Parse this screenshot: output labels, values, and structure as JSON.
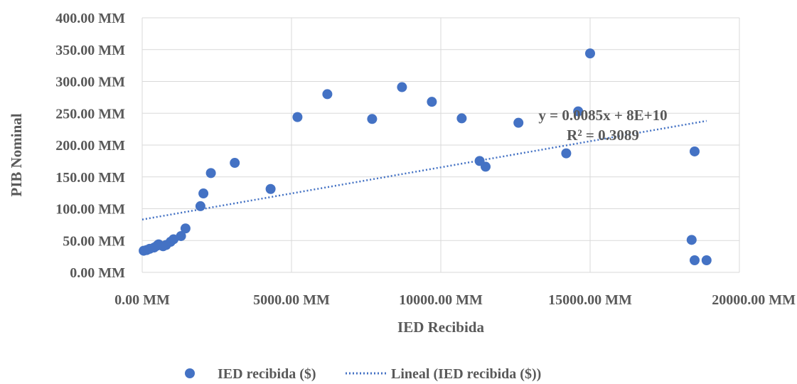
{
  "chart_data": {
    "type": "scatter",
    "xlabel": "IED Recibida",
    "ylabel": "PIB Nominal",
    "xlim": [
      0,
      20000
    ],
    "ylim": [
      0,
      400
    ],
    "x_ticks": [
      0,
      5000,
      10000,
      15000,
      20000
    ],
    "y_ticks": [
      0,
      50,
      100,
      150,
      200,
      250,
      300,
      350,
      400
    ],
    "x_tick_labels": [
      "0.00 MM",
      "5000.00 MM",
      "10000.00 MM",
      "15000.00 MM",
      "20000.00 MM"
    ],
    "y_tick_labels": [
      "0.00 MM",
      "50.00 MM",
      "100.00 MM",
      "150.00 MM",
      "200.00 MM",
      "250.00 MM",
      "300.00 MM",
      "350.00 MM",
      "400.00 MM"
    ],
    "grid": true,
    "legend_position": "bottom",
    "series": [
      {
        "name": "IED recibida ($)",
        "color": "#4472c4",
        "marker": "circle",
        "x": [
          50,
          150,
          250,
          400,
          500,
          550,
          700,
          800,
          950,
          1050,
          1300,
          1450,
          1950,
          2050,
          2300,
          3100,
          4300,
          5200,
          6200,
          7700,
          8700,
          9700,
          10700,
          11300,
          11500,
          12600,
          14200,
          14600,
          15000,
          18400,
          18500,
          18500,
          18900
        ],
        "y": [
          34,
          35,
          37,
          39,
          42,
          44,
          41,
          43,
          48,
          52,
          57,
          69,
          104,
          124,
          156,
          172,
          131,
          244,
          280,
          241,
          291,
          268,
          242,
          175,
          166,
          235,
          187,
          253,
          344,
          51,
          190,
          19,
          19
        ]
      },
      {
        "name": "Lineal (IED recibida ($))",
        "type": "trendline",
        "color": "#4472c4",
        "style": "dotted",
        "x": [
          0,
          18900
        ],
        "y": [
          83,
          238
        ]
      }
    ],
    "annotations": {
      "equation": "y = 0.0085x + 8E+10",
      "r_squared": "R² = 0.3089"
    }
  }
}
